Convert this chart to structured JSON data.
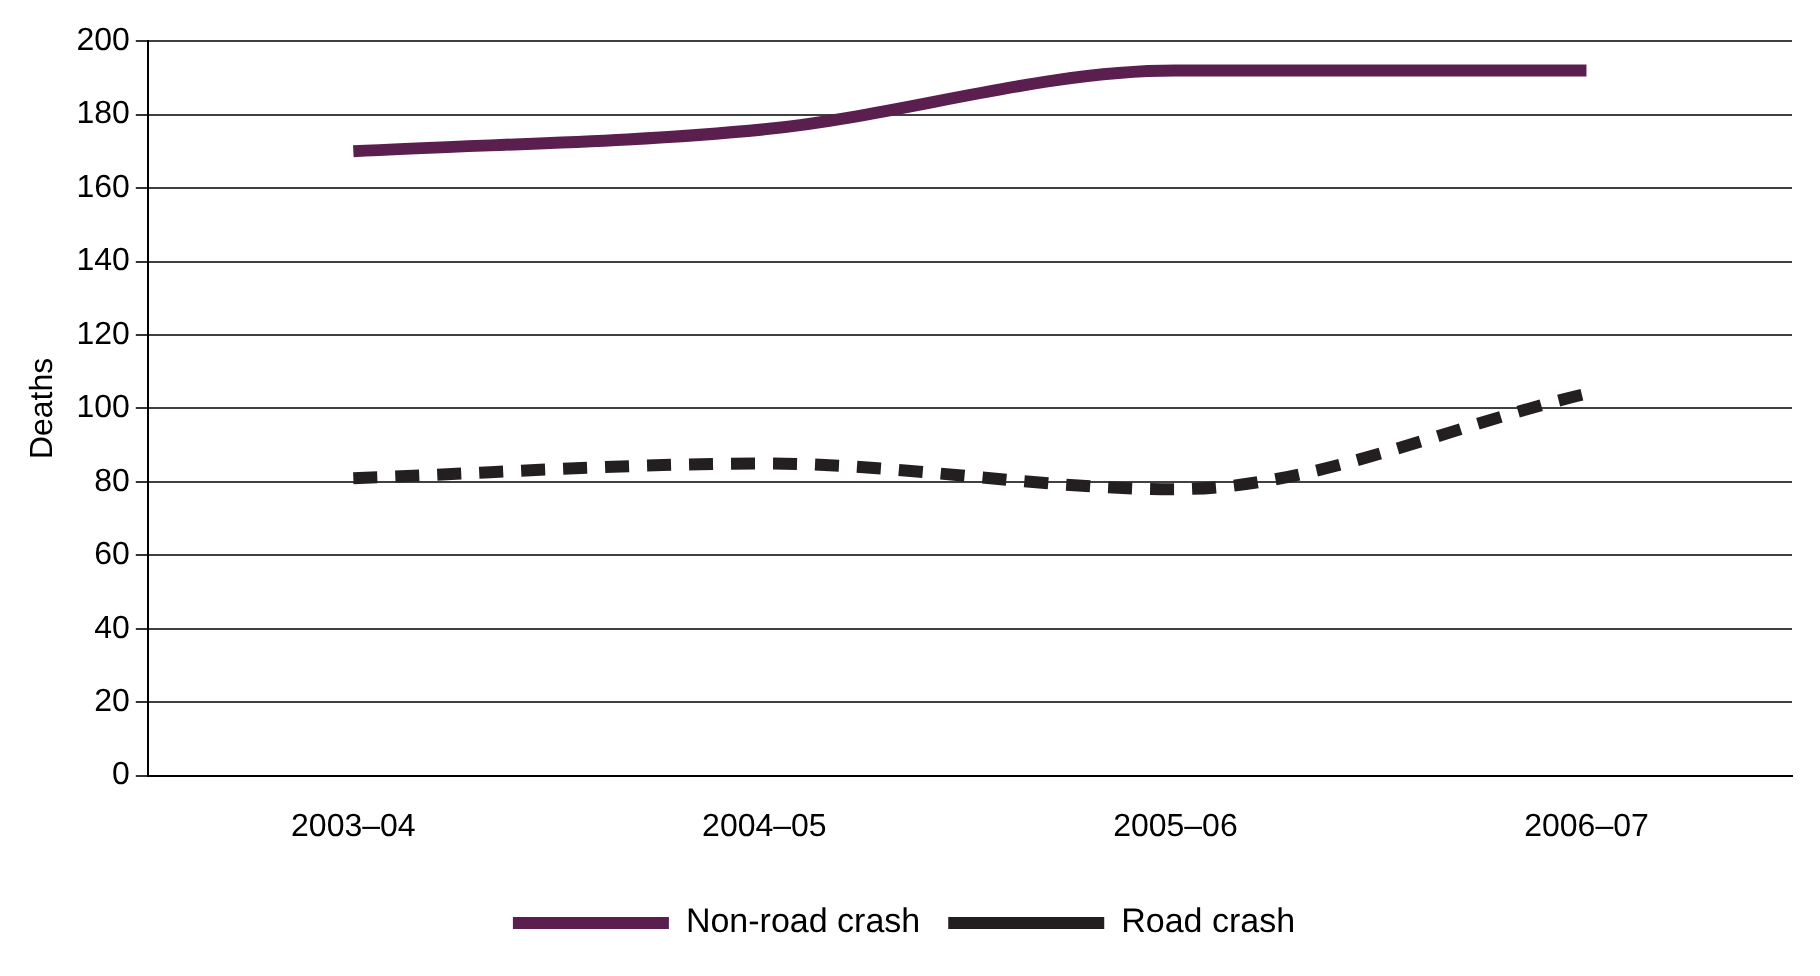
{
  "chart_data": {
    "type": "line",
    "ylabel": "Deaths",
    "categories": [
      "2003–04",
      "2004–05",
      "2005–06",
      "2006–07"
    ],
    "series": [
      {
        "name": "Non-road crash",
        "color": "#5b1f4f",
        "values": [
          170,
          176,
          192,
          192
        ],
        "line_style": "solid"
      },
      {
        "name": "Road crash",
        "color": "#231f20",
        "values": [
          81,
          85,
          78,
          104
        ],
        "line_style": "dashed"
      }
    ],
    "ylim": [
      0,
      200
    ],
    "yticks": [
      0,
      20,
      40,
      60,
      80,
      100,
      120,
      140,
      160,
      180,
      200
    ],
    "grid": "y",
    "legend": "bottom",
    "marker": "none"
  }
}
